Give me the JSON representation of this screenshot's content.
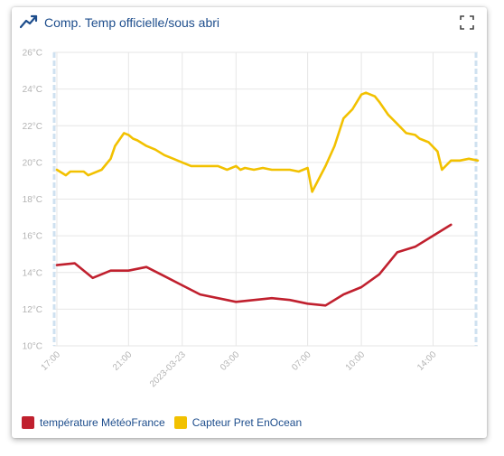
{
  "card": {
    "title": "Comp. Temp officielle/sous abri",
    "title_icon": "line-chart-icon",
    "fullscreen_icon": "fullscreen-icon"
  },
  "colors": {
    "title": "#1d4d8c",
    "grid": "#e6e6e6",
    "series_meteo": "#c0202e",
    "series_capteur": "#f2c100"
  },
  "chart_data": {
    "type": "line",
    "xlabel": "",
    "ylabel": "",
    "ylim": [
      10,
      26
    ],
    "yticks": [
      "10°C",
      "12°C",
      "14°C",
      "16°C",
      "18°C",
      "20°C",
      "22°C",
      "24°C",
      "26°C"
    ],
    "xticks": [
      "17:00",
      "21:00",
      "2023-03-23",
      "03:00",
      "07:00",
      "10:00",
      "14:00"
    ],
    "xtick_hours": [
      0,
      4,
      7,
      10,
      14,
      17,
      21
    ],
    "x_range_hours": [
      -0.2,
      23.5
    ],
    "grid": true,
    "legend_position": "bottom-left",
    "series": [
      {
        "name": "température MétéoFrance",
        "color": "#c0202e",
        "points": [
          [
            0.0,
            14.4
          ],
          [
            1.0,
            14.5
          ],
          [
            2.0,
            13.7
          ],
          [
            3.0,
            14.1
          ],
          [
            4.0,
            14.1
          ],
          [
            5.0,
            14.3
          ],
          [
            6.0,
            13.8
          ],
          [
            7.0,
            13.3
          ],
          [
            8.0,
            12.8
          ],
          [
            10.0,
            12.4
          ],
          [
            12.0,
            12.6
          ],
          [
            13.0,
            12.5
          ],
          [
            14.0,
            12.3
          ],
          [
            15.0,
            12.2
          ],
          [
            16.0,
            12.8
          ],
          [
            17.0,
            13.2
          ],
          [
            18.0,
            13.9
          ],
          [
            19.0,
            15.1
          ],
          [
            20.0,
            15.4
          ],
          [
            21.0,
            16.0
          ],
          [
            22.0,
            16.6
          ]
        ]
      },
      {
        "name": "Capteur Pret EnOcean",
        "color": "#f2c100",
        "points": [
          [
            0.0,
            19.6
          ],
          [
            0.5,
            19.3
          ],
          [
            0.75,
            19.5
          ],
          [
            1.0,
            19.5
          ],
          [
            1.5,
            19.5
          ],
          [
            1.75,
            19.3
          ],
          [
            2.0,
            19.4
          ],
          [
            2.5,
            19.6
          ],
          [
            3.0,
            20.2
          ],
          [
            3.25,
            20.9
          ],
          [
            3.75,
            21.6
          ],
          [
            4.0,
            21.5
          ],
          [
            4.25,
            21.3
          ],
          [
            4.5,
            21.2
          ],
          [
            5.0,
            20.9
          ],
          [
            5.5,
            20.7
          ],
          [
            6.0,
            20.4
          ],
          [
            6.5,
            20.2
          ],
          [
            7.0,
            20.0
          ],
          [
            7.5,
            19.8
          ],
          [
            8.0,
            19.8
          ],
          [
            9.0,
            19.8
          ],
          [
            9.5,
            19.6
          ],
          [
            10.0,
            19.8
          ],
          [
            10.25,
            19.6
          ],
          [
            10.5,
            19.7
          ],
          [
            11.0,
            19.6
          ],
          [
            11.5,
            19.7
          ],
          [
            12.0,
            19.6
          ],
          [
            12.5,
            19.6
          ],
          [
            13.0,
            19.6
          ],
          [
            13.5,
            19.5
          ],
          [
            14.0,
            19.7
          ],
          [
            14.25,
            18.4
          ],
          [
            15.0,
            19.8
          ],
          [
            15.5,
            20.9
          ],
          [
            16.0,
            22.4
          ],
          [
            16.5,
            22.9
          ],
          [
            17.0,
            23.7
          ],
          [
            17.25,
            23.8
          ],
          [
            17.75,
            23.6
          ],
          [
            18.0,
            23.3
          ],
          [
            18.5,
            22.6
          ],
          [
            19.0,
            22.1
          ],
          [
            19.5,
            21.6
          ],
          [
            20.0,
            21.5
          ],
          [
            20.25,
            21.3
          ],
          [
            20.75,
            21.1
          ],
          [
            21.25,
            20.6
          ],
          [
            21.5,
            19.6
          ],
          [
            22.0,
            20.1
          ],
          [
            22.5,
            20.1
          ],
          [
            23.0,
            20.2
          ],
          [
            23.5,
            20.1
          ]
        ]
      }
    ]
  }
}
